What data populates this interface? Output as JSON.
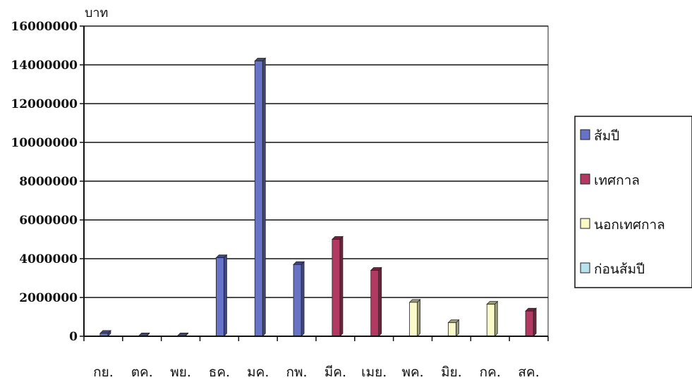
{
  "chart_data": {
    "type": "bar",
    "ylabel": "บาท",
    "ylim": [
      0,
      16000000
    ],
    "yticks": [
      0,
      2000000,
      4000000,
      6000000,
      8000000,
      10000000,
      12000000,
      14000000,
      16000000
    ],
    "ytick_labels": [
      "0",
      "2000000",
      "4000000",
      "6000000",
      "8000000",
      "10000000",
      "12000000",
      "14000000",
      "16000000"
    ],
    "grid": true,
    "legend": "right",
    "categories": [
      "กย.",
      "ตค.",
      "พย.",
      "ธค.",
      "มค.",
      "กพ.",
      "มีค.",
      "เมย.",
      "พค.",
      "มิย.",
      "กค.",
      "สค."
    ],
    "series": [
      {
        "name": "ส้มปี",
        "color": "#6673c7",
        "values": [
          150000,
          20000,
          20000,
          4050000,
          14200000,
          3700000,
          0,
          0,
          0,
          0,
          0,
          0
        ]
      },
      {
        "name": "เทศกาล",
        "color": "#b23a62",
        "values": [
          0,
          0,
          0,
          0,
          0,
          0,
          5000000,
          3400000,
          0,
          0,
          0,
          1300000
        ]
      },
      {
        "name": "นอกเทศกาล",
        "color": "#fbfbc9",
        "values": [
          0,
          0,
          0,
          0,
          0,
          0,
          0,
          0,
          1750000,
          700000,
          1650000,
          0
        ]
      },
      {
        "name": "ก่อนส้มปี",
        "color": "#b8e3ee",
        "values": [
          0,
          0,
          0,
          0,
          0,
          0,
          0,
          0,
          0,
          0,
          0,
          0
        ]
      }
    ]
  }
}
